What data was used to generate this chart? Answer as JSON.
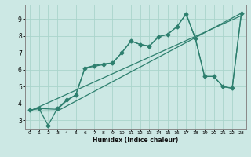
{
  "xlabel": "Humidex (Indice chaleur)",
  "bg_color": "#cce8e4",
  "line_color": "#2d7f6e",
  "grid_color": "#aad4cc",
  "xlim": [
    -0.5,
    23.5
  ],
  "ylim": [
    2.5,
    9.85
  ],
  "xticks": [
    0,
    1,
    2,
    3,
    4,
    5,
    6,
    7,
    8,
    9,
    10,
    11,
    12,
    13,
    14,
    15,
    16,
    17,
    18,
    19,
    20,
    21,
    22,
    23
  ],
  "yticks": [
    3,
    4,
    5,
    6,
    7,
    8,
    9
  ],
  "line1_x": [
    0,
    1,
    2,
    3,
    4,
    5,
    6,
    7,
    8,
    9,
    10,
    11,
    12,
    13,
    14,
    15,
    16,
    17,
    18,
    19,
    20,
    21,
    22,
    23
  ],
  "line1_y": [
    3.6,
    3.7,
    2.7,
    3.7,
    4.2,
    4.5,
    6.1,
    6.2,
    6.3,
    6.4,
    7.0,
    7.7,
    7.5,
    7.4,
    7.95,
    8.1,
    8.55,
    9.3,
    7.85,
    5.6,
    5.6,
    5.0,
    4.9,
    9.35
  ],
  "line2_x": [
    0,
    1,
    3,
    4,
    5,
    6,
    7,
    8,
    9,
    10,
    11,
    12,
    13,
    14,
    15,
    16,
    17,
    18,
    19,
    20,
    21,
    22,
    23
  ],
  "line2_y": [
    3.6,
    3.7,
    3.65,
    4.15,
    4.5,
    6.1,
    6.25,
    6.35,
    6.4,
    7.0,
    7.7,
    7.5,
    7.4,
    7.95,
    8.1,
    8.55,
    9.3,
    7.85,
    5.6,
    5.6,
    5.0,
    4.9,
    9.35
  ],
  "line3_x": [
    0,
    3,
    23
  ],
  "line3_y": [
    3.55,
    3.55,
    9.35
  ],
  "line4_x": [
    0,
    23
  ],
  "line4_y": [
    3.55,
    9.2
  ]
}
